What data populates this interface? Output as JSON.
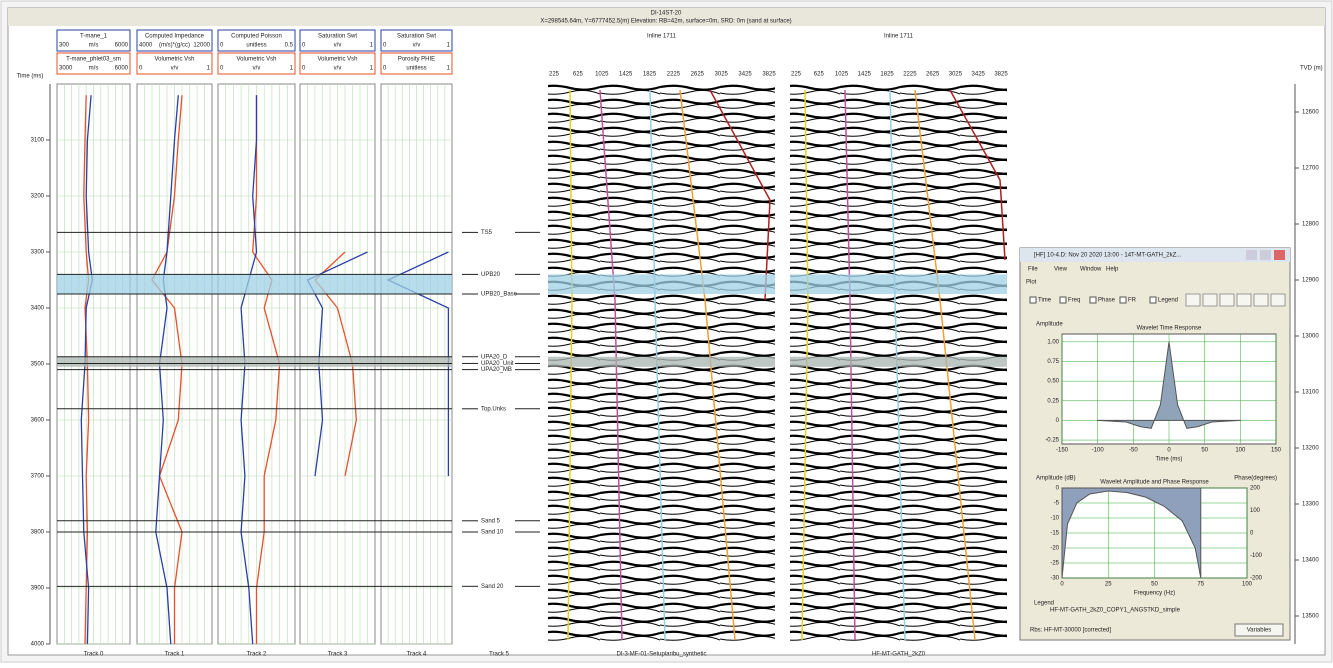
{
  "header": {
    "title": "DI-14ST-20",
    "subtitle": "X=298545.64m, Y=6777452.5(m) Elevation: RB=42m, surface=0m, SRD: 0m (sand at surface)"
  },
  "time_axis": {
    "label": "Time (ms)",
    "lim": [
      3000,
      4000
    ],
    "ticks": [
      3100,
      3200,
      3300,
      3400,
      3500,
      3600,
      3700,
      3800,
      3900,
      4000
    ]
  },
  "depth_axis": {
    "label": "TVD (m)",
    "labels": [
      "12600",
      "12700",
      "12800",
      "12900",
      "13000",
      "13100",
      "13200",
      "13300",
      "13400",
      "13500"
    ]
  },
  "sample_times": [
    3020,
    3100,
    3200,
    3300,
    3350,
    3400,
    3500,
    3600,
    3700,
    3800,
    3900,
    4000
  ],
  "tracks": [
    {
      "title": "Track 0",
      "boxes": [
        {
          "name": "T-mane_1",
          "min": "300",
          "unit": "m/s",
          "max": "6000"
        },
        {
          "name": "T-mane_phlet03_sm",
          "min": "3000",
          "unit": "m/s",
          "max": "6000"
        }
      ],
      "curves": [
        {
          "color": "#e8502a",
          "min": 3000,
          "max": 6000,
          "values": [
            4200,
            4150,
            4100,
            4200,
            4300,
            4150,
            4250,
            4300,
            4200,
            4250,
            4200,
            4150
          ]
        },
        {
          "color": "#2a3fa8",
          "min": 3000,
          "max": 6000,
          "values": [
            4400,
            4250,
            4200,
            4300,
            4450,
            4200,
            4150,
            4000,
            4050,
            4100,
            4300,
            4250
          ]
        }
      ]
    },
    {
      "title": "Track 1",
      "boxes": [
        {
          "name": "Computed Impedance",
          "min": "4000",
          "unit": "(m/s)*(g/cc)",
          "max": "12000"
        },
        {
          "name": "Volumetric Vsh",
          "min": "0",
          "unit": "v/v",
          "max": "1"
        }
      ],
      "curves": [
        {
          "color": "#e8502a",
          "min": 0,
          "max": 1,
          "values": [
            0.6,
            0.55,
            0.5,
            0.4,
            0.2,
            0.5,
            0.6,
            0.55,
            0.3,
            0.6,
            0.5,
            0.5
          ]
        },
        {
          "color": "#2a3fa8",
          "min": 0,
          "max": 1,
          "values": [
            0.55,
            0.5,
            0.45,
            0.4,
            0.35,
            0.4,
            0.3,
            0.35,
            0.3,
            0.25,
            0.4,
            0.45
          ]
        }
      ]
    },
    {
      "title": "Track 2",
      "boxes": [
        {
          "name": "Computed Poisson",
          "min": "0",
          "unit": "unitless",
          "max": "0.5"
        },
        {
          "name": "Volumetric Vsh",
          "min": "0",
          "unit": "v/v",
          "max": "1"
        }
      ],
      "curves": [
        {
          "color": "#e8502a",
          "min": 0,
          "max": 1,
          "values": [
            0.5,
            0.5,
            0.5,
            0.45,
            0.7,
            0.6,
            0.8,
            0.75,
            0.6,
            0.6,
            0.5,
            0.5
          ]
        },
        {
          "color": "#2a3fa8",
          "min": 0,
          "max": 1,
          "values": [
            0.5,
            0.5,
            0.45,
            0.5,
            0.4,
            0.3,
            0.35,
            0.3,
            0.35,
            0.3,
            0.4,
            0.45
          ]
        }
      ]
    },
    {
      "title": "Track 3",
      "boxes": [
        {
          "name": "Saturation Swt",
          "min": "0",
          "unit": "v/v",
          "max": "1"
        },
        {
          "name": "Volumetric Vsh",
          "min": "0",
          "unit": "v/v",
          "max": "1"
        }
      ],
      "curves": [
        {
          "color": "#e8502a",
          "min": 0,
          "max": 1,
          "values": [
            null,
            null,
            null,
            0.6,
            0.2,
            0.5,
            0.7,
            0.75,
            0.6,
            null,
            null,
            null
          ]
        },
        {
          "color": "#2a3fa8",
          "min": 0,
          "max": 1,
          "values": [
            null,
            null,
            null,
            0.9,
            0.1,
            0.3,
            0.25,
            0.3,
            0.2,
            null,
            null,
            null
          ]
        }
      ]
    },
    {
      "title": "Track 4",
      "boxes": [
        {
          "name": "Saturation Swt",
          "min": "0",
          "unit": "v/v",
          "max": "1"
        },
        {
          "name": "Porosity PHIE",
          "min": "0",
          "unit": "unitless",
          "max": "1"
        }
      ],
      "curves": [
        {
          "color": "#2a3fa8",
          "min": 0,
          "max": 1,
          "values": [
            null,
            null,
            null,
            0.95,
            0.1,
            0.95,
            0.95,
            0.95,
            0.95,
            null,
            null,
            null
          ]
        }
      ]
    }
  ],
  "horizons_track": "Track 5",
  "horizons": [
    {
      "label": "TS5",
      "time": 3265
    },
    {
      "label": "UPB20",
      "time": 3340
    },
    {
      "label": "UPB20_Base",
      "time": 3375
    },
    {
      "label": "UPA20_D",
      "time": 3487
    },
    {
      "label": "UPA20_Unit",
      "time": 3499
    },
    {
      "label": "UPA20_MB",
      "time": 3510
    },
    {
      "label": "Top.Unks",
      "time": 3580
    },
    {
      "label": "Sand 5",
      "time": 3780
    },
    {
      "label": "Sand 10",
      "time": 3800
    },
    {
      "label": "Sand 20",
      "time": 3897
    }
  ],
  "zones": [
    {
      "top": 3340,
      "base": 3375
    },
    {
      "top": 3487,
      "base": 3505
    }
  ],
  "seismic": [
    {
      "title": "Inline 1711",
      "label": "DI-3-MF-01-Setuplaribu_synthetic",
      "traces": [
        "225",
        "625",
        "1025",
        "1425",
        "1825",
        "2225",
        "2625",
        "3025",
        "3425",
        "3825"
      ]
    },
    {
      "title": "Inline 1711",
      "label": "HF-MT-GATH_2kZ0",
      "traces": [
        "225",
        "625",
        "1025",
        "1425",
        "1825",
        "2225",
        "2625",
        "3025",
        "3425",
        "3825"
      ]
    }
  ],
  "dialog": {
    "title": "[HF] 10-4.D: Nov 20 2020 13:00 - 14T-MT-GATH_2kZ...",
    "menu": [
      "File",
      "View",
      "Window",
      "Help"
    ],
    "tab": "Plot",
    "options": [
      "Time",
      "Freq",
      "Phase",
      "FR",
      "Legend"
    ],
    "time_chart": {
      "title": "Wavelet Time Response",
      "ylabel": "Amplitude",
      "xlabel": "Time (ms)",
      "xlim": [
        -150,
        150
      ],
      "ylim": [
        -0.3,
        1.1
      ],
      "xticks": [
        -150,
        -100,
        -50,
        0,
        50,
        100,
        150
      ],
      "yticks": [
        {
          "value": -0.25,
          "label": "-0.25"
        },
        0,
        {
          "value": 0.25,
          "label": "0.25"
        },
        {
          "value": 0.5,
          "label": "0.50"
        },
        {
          "value": 0.75,
          "label": "0.75"
        },
        {
          "value": 1,
          "label": "1.00"
        }
      ],
      "x": [
        -100,
        -60,
        -40,
        -25,
        -12,
        0,
        12,
        25,
        40,
        60,
        100
      ],
      "values": [
        0,
        -0.02,
        -0.08,
        -0.1,
        0.2,
        1,
        0.2,
        -0.1,
        -0.08,
        -0.02,
        0
      ]
    },
    "spectrum_chart": {
      "title": "Wavelet Amplitude and Phase Response",
      "ylabel": "Amplitude (dB)",
      "y2label": "Phase(degrees)",
      "xlabel": "Frequency (Hz)",
      "xlim": [
        0,
        100
      ],
      "ylim": [
        -30,
        0
      ],
      "y2lim": [
        -200,
        200
      ],
      "xticks": [
        0,
        25,
        50,
        75,
        100
      ],
      "yticks": [
        -30,
        -25,
        -20,
        -15,
        -10,
        -5,
        0
      ],
      "y2ticks": [
        -200,
        -100,
        0,
        100,
        200
      ],
      "x": [
        0,
        3,
        8,
        15,
        25,
        35,
        45,
        55,
        65,
        72,
        75
      ],
      "values": [
        -30,
        -12,
        -5,
        -2,
        -1,
        -1.5,
        -3,
        -6,
        -11,
        -20,
        -30
      ]
    },
    "legend_title": "Legend",
    "legend_entry": "HF-MT-GATH_2kZ0_COPY1_ANGSTKD_simple",
    "status": "Rbs: HF-MT-30000 [corrected]",
    "button": "Variables"
  }
}
